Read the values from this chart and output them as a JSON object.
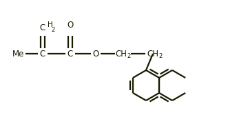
{
  "bg_color": "#ffffff",
  "line_color": "#1a1a00",
  "line_width": 1.6,
  "font_size": 8.5,
  "figsize": [
    3.31,
    1.99
  ],
  "dpi": 100,
  "xlim": [
    0,
    331
  ],
  "ylim": [
    0,
    199
  ]
}
